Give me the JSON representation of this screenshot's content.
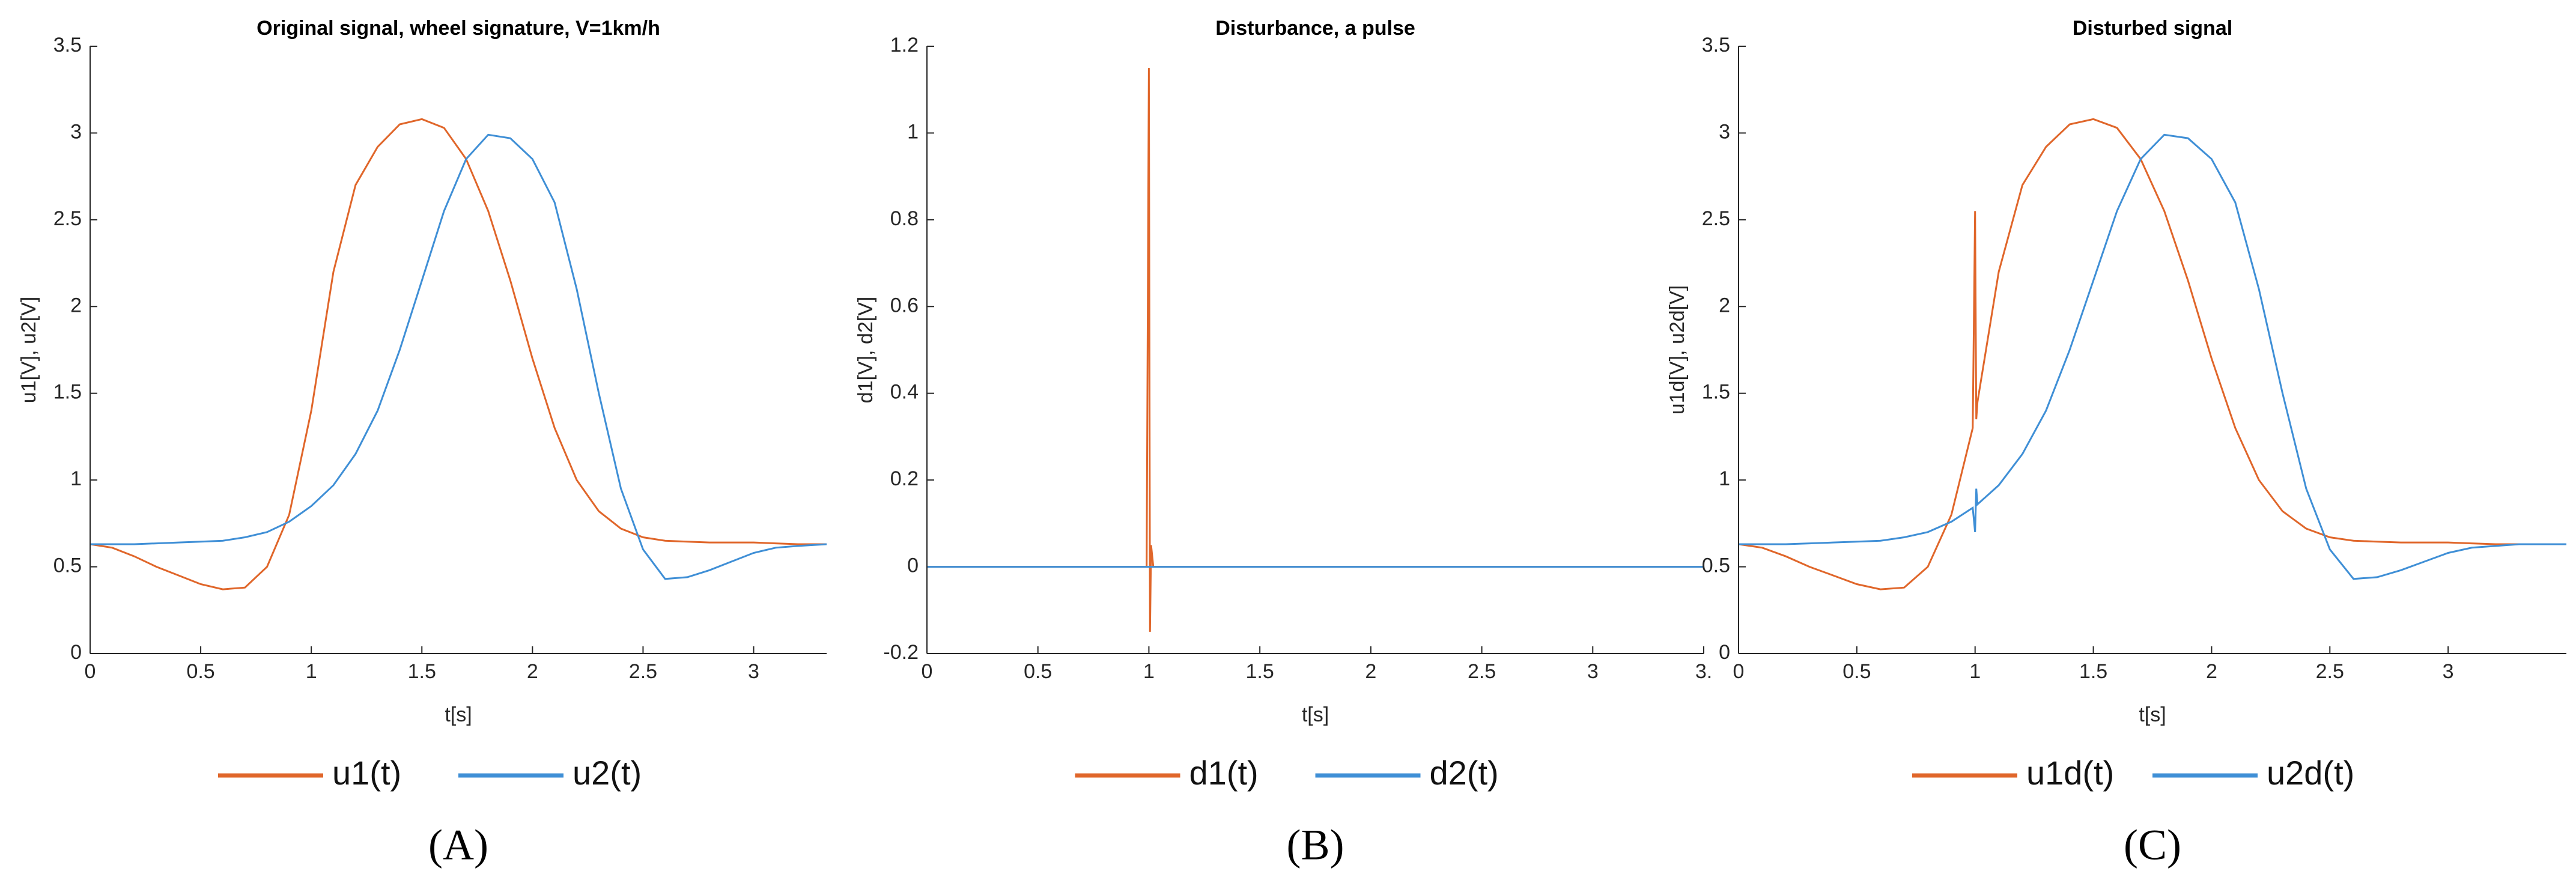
{
  "chart_data": [
    {
      "type": "line",
      "title": "Original signal, wheel signature, V=1km/h",
      "x_label": "t[s]",
      "y_label": "u1[V], u2[V]",
      "label": "(A)",
      "x": [
        0,
        0.1,
        0.2,
        0.3,
        0.4,
        0.5,
        0.6,
        0.7,
        0.8,
        0.9,
        1.0,
        1.1,
        1.2,
        1.3,
        1.4,
        1.5,
        1.6,
        1.7,
        1.8,
        1.9,
        2.0,
        2.1,
        2.2,
        2.3,
        2.4,
        2.5,
        2.6,
        2.7,
        2.8,
        2.9,
        3.0,
        3.1,
        3.2,
        3.33
      ],
      "series": [
        {
          "name": "u1(t)",
          "color": "#e0662a",
          "values": [
            0.63,
            0.61,
            0.56,
            0.5,
            0.45,
            0.4,
            0.37,
            0.38,
            0.5,
            0.8,
            1.4,
            2.2,
            2.7,
            2.92,
            3.05,
            3.08,
            3.03,
            2.85,
            2.55,
            2.15,
            1.7,
            1.3,
            1.0,
            0.82,
            0.72,
            0.67,
            0.65,
            0.645,
            0.64,
            0.64,
            0.64,
            0.635,
            0.63,
            0.63
          ]
        },
        {
          "name": "u2(t)",
          "color": "#3f8fd6",
          "values": [
            0.63,
            0.63,
            0.63,
            0.635,
            0.64,
            0.645,
            0.65,
            0.67,
            0.7,
            0.76,
            0.85,
            0.97,
            1.15,
            1.4,
            1.75,
            2.15,
            2.55,
            2.85,
            2.99,
            2.97,
            2.85,
            2.6,
            2.1,
            1.5,
            0.95,
            0.6,
            0.43,
            0.44,
            0.48,
            0.53,
            0.58,
            0.61,
            0.62,
            0.63
          ]
        }
      ],
      "xlim": [
        0,
        3.33
      ],
      "ylim": [
        0,
        3.5
      ],
      "xticks": [
        0,
        0.5,
        1,
        1.5,
        2,
        2.5,
        3
      ],
      "yticks": [
        0,
        0.5,
        1,
        1.5,
        2,
        2.5,
        3,
        3.5
      ]
    },
    {
      "type": "line",
      "title": "Disturbance, a pulse",
      "x_label": "t[s]",
      "y_label": "d1[V], d2[V]",
      "label": "(B)",
      "x": [
        0,
        0.99,
        1.0,
        1.005,
        1.01,
        1.02,
        3.5
      ],
      "series": [
        {
          "name": "d1(t)",
          "color": "#e0662a",
          "values": [
            0,
            0,
            1.15,
            -0.15,
            0.05,
            0,
            0
          ]
        },
        {
          "name": "d2(t)",
          "color": "#3f8fd6",
          "values": [
            0,
            0,
            0,
            0,
            0,
            0,
            0
          ]
        }
      ],
      "xlim": [
        0,
        3.5
      ],
      "ylim": [
        -0.2,
        1.2
      ],
      "xticks": [
        0,
        0.5,
        1,
        1.5,
        2,
        2.5,
        3,
        {
          "value": 3.5,
          "label": "3."
        }
      ],
      "yticks": [
        -0.2,
        0,
        0.2,
        0.4,
        0.6,
        0.8,
        1,
        1.2
      ]
    },
    {
      "type": "line",
      "title": "Disturbed signal",
      "x_label": "t[s]",
      "y_label": "u1d[V], u2d[V]",
      "label": "(C)",
      "x": [
        0,
        0.1,
        0.2,
        0.3,
        0.4,
        0.5,
        0.6,
        0.7,
        0.8,
        0.9,
        0.99,
        1.0,
        1.005,
        1.01,
        1.1,
        1.2,
        1.3,
        1.4,
        1.5,
        1.6,
        1.7,
        1.8,
        1.9,
        2.0,
        2.1,
        2.2,
        2.3,
        2.4,
        2.5,
        2.6,
        2.7,
        2.8,
        2.9,
        3.0,
        3.1,
        3.2,
        3.3,
        3.4,
        3.5
      ],
      "series": [
        {
          "name": "u1d(t)",
          "color": "#e0662a",
          "values": [
            0.63,
            0.61,
            0.56,
            0.5,
            0.45,
            0.4,
            0.37,
            0.38,
            0.5,
            0.8,
            1.3,
            2.55,
            1.35,
            1.45,
            2.2,
            2.7,
            2.92,
            3.05,
            3.08,
            3.03,
            2.85,
            2.55,
            2.15,
            1.7,
            1.3,
            1.0,
            0.82,
            0.72,
            0.67,
            0.65,
            0.645,
            0.64,
            0.64,
            0.64,
            0.635,
            0.63,
            0.63,
            0.63,
            0.63
          ]
        },
        {
          "name": "u2d(t)",
          "color": "#3f8fd6",
          "values": [
            0.63,
            0.63,
            0.63,
            0.635,
            0.64,
            0.645,
            0.65,
            0.67,
            0.7,
            0.76,
            0.84,
            0.7,
            0.95,
            0.86,
            0.97,
            1.15,
            1.4,
            1.75,
            2.15,
            2.55,
            2.85,
            2.99,
            2.97,
            2.85,
            2.6,
            2.1,
            1.5,
            0.95,
            0.6,
            0.43,
            0.44,
            0.48,
            0.53,
            0.58,
            0.61,
            0.62,
            0.63,
            0.63,
            0.63
          ]
        }
      ],
      "xlim": [
        0,
        3.5
      ],
      "ylim": [
        0,
        3.5
      ],
      "xticks": [
        0,
        0.5,
        1,
        1.5,
        2,
        2.5,
        3
      ],
      "yticks": [
        0,
        0.5,
        1,
        1.5,
        2,
        2.5,
        3,
        3.5
      ]
    }
  ]
}
